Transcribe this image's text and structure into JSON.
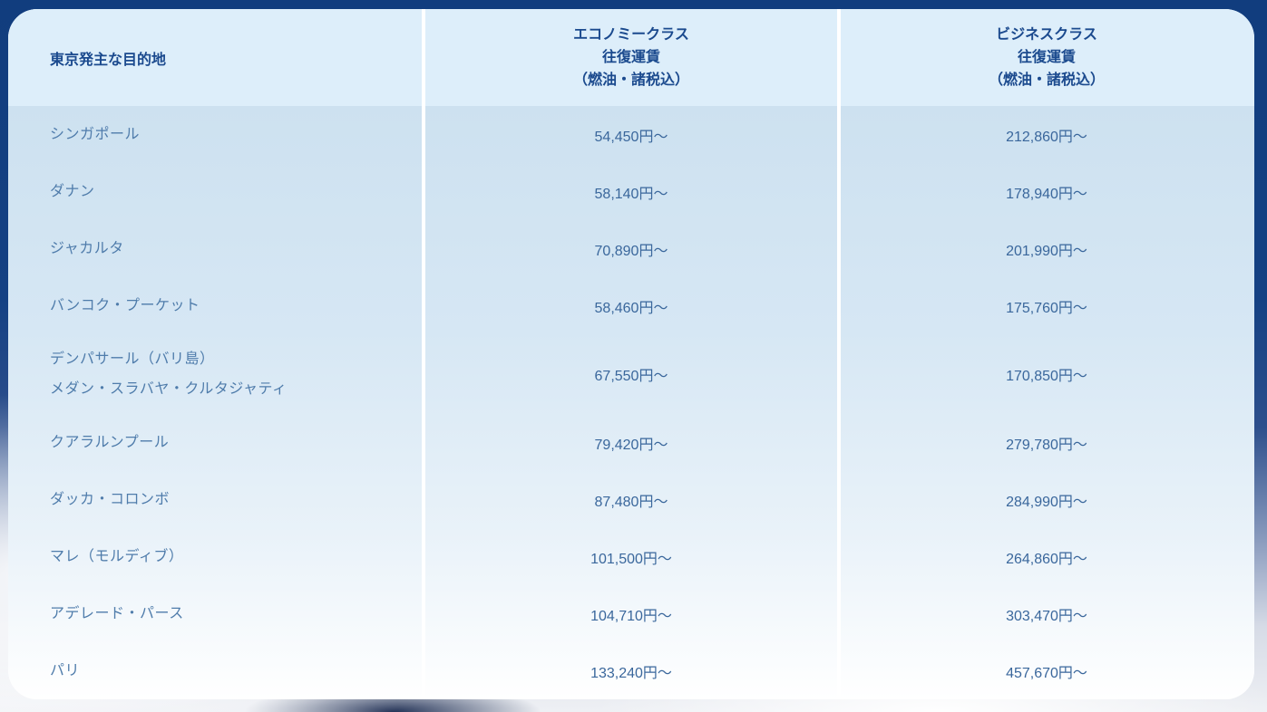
{
  "colors": {
    "frame_navy": "#154183",
    "header_bg": "#ddeefa",
    "body_gradient_top": "#cde1f0",
    "body_gradient_bottom": "#ffffff",
    "header_text": "#1b4a8e",
    "destination_text": "#4f7cab",
    "fare_text": "#3a679c",
    "column_divider": "#ffffff"
  },
  "table": {
    "header": {
      "destination_label": "東京発主な目的地",
      "economy_label": "エコノミークラス\n往復運賃\n（燃油・諸税込）",
      "business_label": "ビジネスクラス\n往復運賃\n（燃油・諸税込）"
    },
    "rows": [
      {
        "destination": "シンガポール",
        "economy": "54,450円〜",
        "business": "212,860円〜"
      },
      {
        "destination": "ダナン",
        "economy": "58,140円〜",
        "business": "178,940円〜"
      },
      {
        "destination": "ジャカルタ",
        "economy": "70,890円〜",
        "business": "201,990円〜"
      },
      {
        "destination": "バンコク・プーケット",
        "economy": "58,460円〜",
        "business": "175,760円〜"
      },
      {
        "destination": "デンパサール（バリ島）\nメダン・スラバヤ・クルタジャティ",
        "economy": "67,550円〜",
        "business": "170,850円〜"
      },
      {
        "destination": "クアラルンプール",
        "economy": "79,420円〜",
        "business": "279,780円〜"
      },
      {
        "destination": "ダッカ・コロンボ",
        "economy": "87,480円〜",
        "business": "284,990円〜"
      },
      {
        "destination": "マレ（モルディブ）",
        "economy": "101,500円〜",
        "business": "264,860円〜"
      },
      {
        "destination": "アデレード・パース",
        "economy": "104,710円〜",
        "business": "303,470円〜"
      },
      {
        "destination": "パリ",
        "economy": "133,240円〜",
        "business": "457,670円〜"
      }
    ]
  },
  "chart_data": {
    "type": "table",
    "columns": [
      "東京発主な目的地",
      "エコノミークラス 往復運賃（燃油・諸税込）",
      "ビジネスクラス 往復運賃（燃油・諸税込）"
    ],
    "rows": [
      [
        "シンガポール",
        "54,450円〜",
        "212,860円〜"
      ],
      [
        "ダナン",
        "58,140円〜",
        "178,940円〜"
      ],
      [
        "ジャカルタ",
        "70,890円〜",
        "201,990円〜"
      ],
      [
        "バンコク・プーケット",
        "58,460円〜",
        "175,760円〜"
      ],
      [
        "デンパサール（バリ島） メダン・スラバヤ・クルタジャティ",
        "67,550円〜",
        "170,850円〜"
      ],
      [
        "クアラルンプール",
        "79,420円〜",
        "279,780円〜"
      ],
      [
        "ダッカ・コロンボ",
        "87,480円〜",
        "284,990円〜"
      ],
      [
        "マレ（モルディブ）",
        "101,500円〜",
        "264,860円〜"
      ],
      [
        "アデレード・パース",
        "104,710円〜",
        "303,470円〜"
      ],
      [
        "パリ",
        "133,240円〜",
        "457,670円〜"
      ]
    ],
    "economy_fares_jpy": [
      54450,
      58140,
      70890,
      58460,
      67550,
      79420,
      87480,
      101500,
      104710,
      133240
    ],
    "business_fares_jpy": [
      212860,
      178940,
      201990,
      175760,
      170850,
      279780,
      284990,
      264860,
      303470,
      457670
    ]
  }
}
